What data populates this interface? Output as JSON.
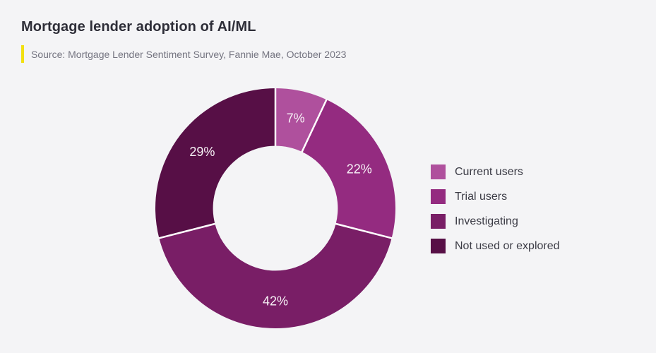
{
  "chart_data": {
    "type": "pie",
    "donut": true,
    "title": "Mortgage lender adoption of AI/ML",
    "source": "Source: Mortgage Lender Sentiment Survey, Fannie Mae, October 2023",
    "categories": [
      "Current users",
      "Trial users",
      "Investigating",
      "Not used or explored"
    ],
    "values": [
      7,
      22,
      42,
      29
    ],
    "value_labels": [
      "7%",
      "22%",
      "42%",
      "29%"
    ],
    "colors": [
      "#af509d",
      "#942b80",
      "#791e66",
      "#570f46"
    ],
    "start_angle_deg": 0,
    "direction": "clockwise",
    "inner_radius_ratio": 0.52,
    "legend_position": "right",
    "separator_color": "#ffffff",
    "value_label_color": "#f7f2f6"
  },
  "theme": {
    "background": "#f4f4f6",
    "title_color": "#2e2e38",
    "source_color": "#747480",
    "accent_bar_color": "#f2e011",
    "legend_text_color": "#3c3c46"
  }
}
